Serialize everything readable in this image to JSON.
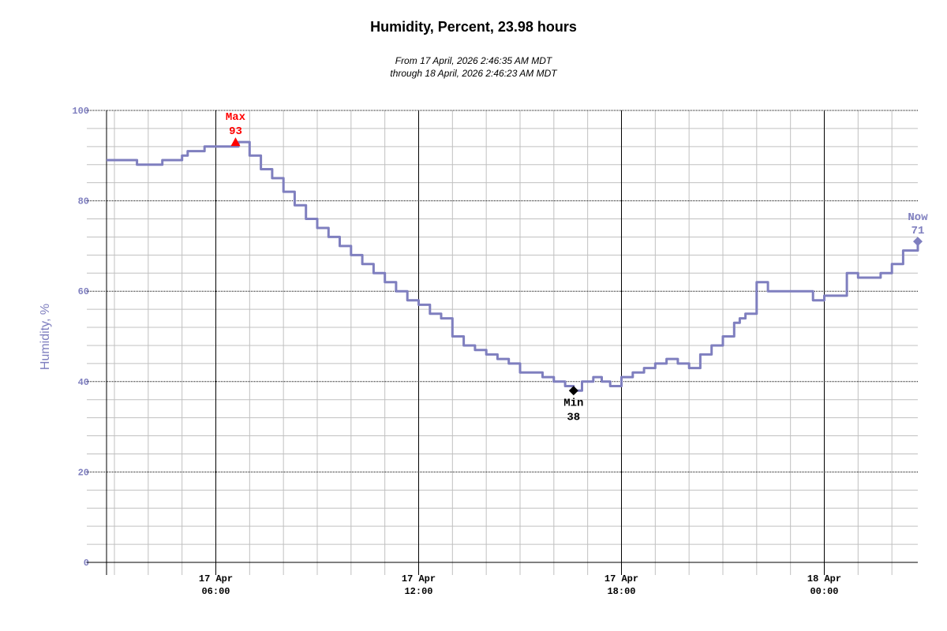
{
  "chart_data": {
    "type": "line",
    "title": "Humidity, Percent, 23.98 hours",
    "subtitle_lines": [
      "From 17 April, 2026 2:46:35 AM MDT",
      "through 18 April, 2026 2:46:23 AM MDT"
    ],
    "ylabel": "Humidity, %",
    "xlabel": "",
    "ylim": [
      0,
      100
    ],
    "y_ticks": [
      0,
      20,
      40,
      60,
      80,
      100
    ],
    "x_ticks": [
      {
        "date": "17 Apr",
        "time": "06:00"
      },
      {
        "date": "17 Apr",
        "time": "12:00"
      },
      {
        "date": "17 Apr",
        "time": "18:00"
      },
      {
        "date": "18 Apr",
        "time": "00:00"
      }
    ],
    "grid": true,
    "colors": {
      "series": "#7f7fbf",
      "max": "#ff0000",
      "min": "#000000",
      "now": "#7f7fbf",
      "axis_text": "#7f7fbf"
    },
    "annotations": {
      "max": {
        "label": "Max",
        "value": "93",
        "x": "17 Apr 06:35",
        "y": 93
      },
      "min": {
        "label": "Min",
        "value": "38",
        "x": "17 Apr 16:35",
        "y": 38
      },
      "now": {
        "label": "Now",
        "value": "71",
        "x": "18 Apr 02:46",
        "y": 71
      }
    },
    "series": [
      {
        "x": [
          "17 Apr 02:46",
          "17 Apr 03:30",
          "17 Apr 03:40",
          "17 Apr 04:15",
          "17 Apr 04:25",
          "17 Apr 05:00",
          "17 Apr 05:10",
          "17 Apr 05:30",
          "17 Apr 05:40",
          "17 Apr 06:35",
          "17 Apr 06:40",
          "17 Apr 07:00",
          "17 Apr 07:20",
          "17 Apr 07:40",
          "17 Apr 08:00",
          "17 Apr 08:20",
          "17 Apr 08:40",
          "17 Apr 09:00",
          "17 Apr 09:20",
          "17 Apr 09:40",
          "17 Apr 10:00",
          "17 Apr 10:20",
          "17 Apr 10:40",
          "17 Apr 11:00",
          "17 Apr 11:20",
          "17 Apr 11:40",
          "17 Apr 12:00",
          "17 Apr 12:20",
          "17 Apr 12:40",
          "17 Apr 13:00",
          "17 Apr 13:20",
          "17 Apr 13:40",
          "17 Apr 14:00",
          "17 Apr 14:20",
          "17 Apr 14:40",
          "17 Apr 15:00",
          "17 Apr 15:20",
          "17 Apr 15:40",
          "17 Apr 16:00",
          "17 Apr 16:20",
          "17 Apr 16:35",
          "17 Apr 16:50",
          "17 Apr 17:10",
          "17 Apr 17:25",
          "17 Apr 17:40",
          "17 Apr 18:00",
          "17 Apr 18:20",
          "17 Apr 18:40",
          "17 Apr 19:00",
          "17 Apr 19:20",
          "17 Apr 19:40",
          "17 Apr 20:00",
          "17 Apr 20:20",
          "17 Apr 20:40",
          "17 Apr 21:00",
          "17 Apr 21:20",
          "17 Apr 21:30",
          "17 Apr 21:40",
          "17 Apr 22:00",
          "17 Apr 22:20",
          "17 Apr 22:40",
          "17 Apr 23:00",
          "17 Apr 23:20",
          "17 Apr 23:40",
          "18 Apr 00:00",
          "18 Apr 00:20",
          "18 Apr 00:40",
          "18 Apr 01:00",
          "18 Apr 01:20",
          "18 Apr 01:40",
          "18 Apr 02:00",
          "18 Apr 02:20",
          "18 Apr 02:46"
        ],
        "y": [
          89,
          89,
          88,
          88,
          89,
          90,
          91,
          91,
          92,
          92,
          93,
          90,
          87,
          85,
          82,
          79,
          76,
          74,
          72,
          70,
          68,
          66,
          64,
          62,
          60,
          58,
          57,
          55,
          54,
          50,
          48,
          47,
          46,
          45,
          44,
          42,
          42,
          41,
          40,
          39,
          38,
          40,
          41,
          40,
          39,
          41,
          42,
          43,
          44,
          45,
          44,
          43,
          46,
          48,
          50,
          53,
          54,
          55,
          62,
          60,
          60,
          60,
          60,
          58,
          59,
          59,
          64,
          63,
          63,
          64,
          66,
          69,
          71
        ]
      }
    ]
  }
}
